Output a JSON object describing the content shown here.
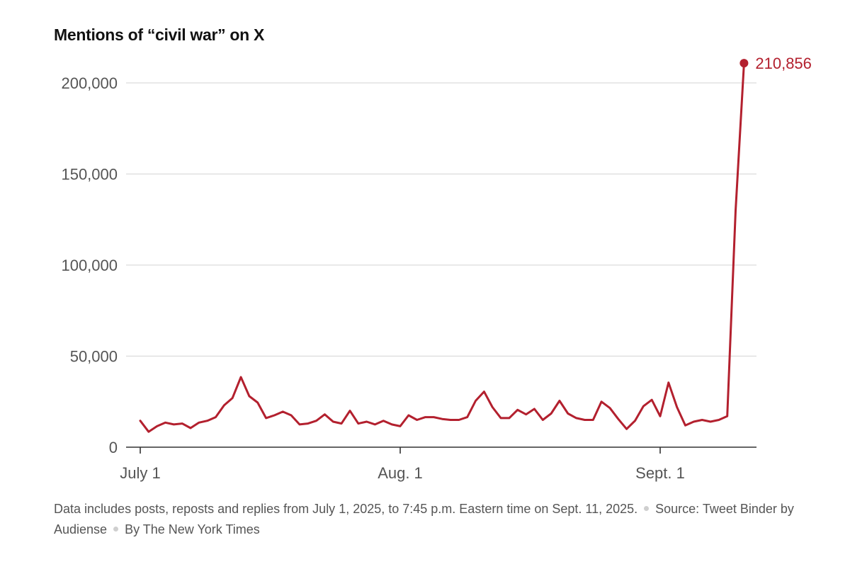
{
  "title": "Mentions of “civil war” on X",
  "footnote": {
    "note": "Data includes posts, reposts and replies from July 1, 2025, to 7:45 p.m. Eastern time on Sept. 11, 2025.",
    "source_label": "Source:",
    "source": "Tweet Binder by Audiense",
    "byline": "By The New York Times"
  },
  "chart_data": {
    "type": "line",
    "title": "Mentions of “civil war” on X",
    "xlabel": "",
    "ylabel": "",
    "x_ticks": [
      "July 1",
      "Aug. 1",
      "Sept. 1"
    ],
    "y_ticks": [
      "0",
      "50,000",
      "100,000",
      "150,000",
      "200,000"
    ],
    "ylim": [
      0,
      210856
    ],
    "grid": true,
    "color": "#b3202e",
    "end_label": "210,856",
    "series": [
      {
        "x": [
          "2025-07-01",
          "2025-07-02",
          "2025-07-03",
          "2025-07-04",
          "2025-07-05",
          "2025-07-06",
          "2025-07-07",
          "2025-07-08",
          "2025-07-09",
          "2025-07-10",
          "2025-07-11",
          "2025-07-12",
          "2025-07-13",
          "2025-07-14",
          "2025-07-15",
          "2025-07-16",
          "2025-07-17",
          "2025-07-18",
          "2025-07-19",
          "2025-07-20",
          "2025-07-21",
          "2025-07-22",
          "2025-07-23",
          "2025-07-24",
          "2025-07-25",
          "2025-07-26",
          "2025-07-27",
          "2025-07-28",
          "2025-07-29",
          "2025-07-30",
          "2025-07-31",
          "2025-08-01",
          "2025-08-02",
          "2025-08-03",
          "2025-08-04",
          "2025-08-05",
          "2025-08-06",
          "2025-08-07",
          "2025-08-08",
          "2025-08-09",
          "2025-08-10",
          "2025-08-11",
          "2025-08-12",
          "2025-08-13",
          "2025-08-14",
          "2025-08-15",
          "2025-08-16",
          "2025-08-17",
          "2025-08-18",
          "2025-08-19",
          "2025-08-20",
          "2025-08-21",
          "2025-08-22",
          "2025-08-23",
          "2025-08-24",
          "2025-08-25",
          "2025-08-26",
          "2025-08-27",
          "2025-08-28",
          "2025-08-29",
          "2025-08-30",
          "2025-08-31",
          "2025-09-01",
          "2025-09-02",
          "2025-09-03",
          "2025-09-04",
          "2025-09-05",
          "2025-09-06",
          "2025-09-07",
          "2025-09-08",
          "2025-09-09",
          "2025-09-10",
          "2025-09-11"
        ],
        "values": [
          14500,
          8500,
          11500,
          13500,
          12500,
          13000,
          10500,
          13500,
          14500,
          16500,
          23000,
          27000,
          38500,
          28000,
          24500,
          16000,
          17500,
          19500,
          17500,
          12500,
          13000,
          14500,
          18000,
          14000,
          13000,
          20000,
          13000,
          14000,
          12500,
          14500,
          12500,
          11500,
          17500,
          15000,
          16500,
          16500,
          15500,
          15000,
          15000,
          16500,
          25500,
          30500,
          22000,
          16000,
          16000,
          20500,
          18000,
          21000,
          15000,
          18500,
          25500,
          18500,
          16000,
          15000,
          15000,
          25000,
          21500,
          15500,
          10000,
          14500,
          22500,
          26000,
          17000,
          35500,
          22000,
          12000,
          14000,
          15000,
          14000,
          15000,
          17000,
          130000,
          210856
        ]
      }
    ]
  }
}
